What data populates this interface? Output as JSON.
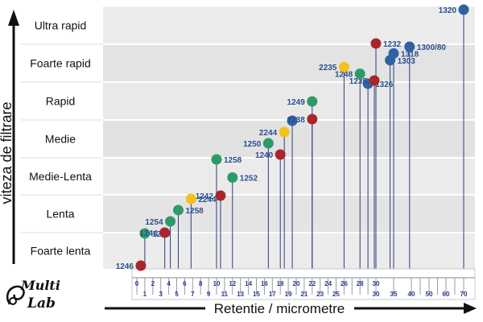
{
  "logo": {
    "line1": "Multi",
    "line2": "Lab"
  },
  "chart_data": {
    "type": "scatter",
    "xlabel": "Retentie / micrometre",
    "ylabel": "viteza de filtrare",
    "categories": [
      "Foarte lenta",
      "Lenta",
      "Medie-Lenta",
      "Medie",
      "Rapid",
      "Foarte rapid",
      "Ultra rapid"
    ],
    "x_ticks_top": [
      "0",
      "2",
      "4",
      "6",
      "8",
      "10",
      "12",
      "14",
      "16",
      "18",
      "20",
      "22",
      "24",
      "26",
      "28",
      "30"
    ],
    "x_ticks_bottom": [
      "1",
      "3",
      "5",
      "7",
      "9",
      "11",
      "13",
      "15",
      "17",
      "19",
      "21",
      "23",
      "25",
      "30",
      "35",
      "40",
      "50",
      "60",
      "70"
    ],
    "legend": "none",
    "grid": false,
    "points": [
      {
        "label": "1246",
        "x": 0.5,
        "category": "Foarte lenta",
        "color": "#a8262b"
      },
      {
        "label": "1256",
        "x": 1,
        "category": "Foarte lenta",
        "color": "#2e9a6a"
      },
      {
        "label": "1244",
        "x": 3.5,
        "category": "Lenta",
        "color": "#a8262b"
      },
      {
        "label": "1254",
        "x": 4.2,
        "category": "Lenta",
        "color": "#2e9a6a"
      },
      {
        "label": "1258",
        "x": 5.2,
        "category": "Lenta",
        "color": "#2e9a6a"
      },
      {
        "label": "2244",
        "x": 6.8,
        "category": "Lenta",
        "color": "#f2c21a"
      },
      {
        "label": "1242",
        "x": 10.5,
        "category": "Medie-Lenta",
        "color": "#a8262b"
      },
      {
        "label": "1252",
        "x": 12,
        "category": "Medie-Lenta",
        "color": "#2e9a6a"
      },
      {
        "label": "1258",
        "x": 10,
        "category": "Medie-Lenta",
        "color": "#2e9a6a"
      },
      {
        "label": "1240",
        "x": 18,
        "category": "Medie",
        "color": "#a8262b"
      },
      {
        "label": "1250",
        "x": 16.5,
        "category": "Medie",
        "color": "#2e9a6a"
      },
      {
        "label": "2244",
        "x": 18.5,
        "category": "Medie",
        "color": "#f2c21a"
      },
      {
        "label": "",
        "x": 19.5,
        "category": "Medie",
        "color": "#2f62a0"
      },
      {
        "label": "1238",
        "x": 22,
        "category": "Rapid",
        "color": "#a8262b"
      },
      {
        "label": "1249",
        "x": 22,
        "category": "Rapid",
        "color": "#2e9a6a"
      },
      {
        "label": "1326",
        "x": 29,
        "category": "Rapid",
        "color": "#2f62a0"
      },
      {
        "label": "1235",
        "x": 29.8,
        "category": "Foarte rapid",
        "color": "#a8262b"
      },
      {
        "label": "1248",
        "x": 28,
        "category": "Foarte rapid",
        "color": "#2e9a6a"
      },
      {
        "label": "2235",
        "x": 26,
        "category": "Foarte rapid",
        "color": "#f2c21a"
      },
      {
        "label": "1303",
        "x": 34,
        "category": "Foarte rapid",
        "color": "#2f62a0"
      },
      {
        "label": "1318",
        "x": 35,
        "category": "Foarte rapid",
        "color": "#2f62a0"
      },
      {
        "label": "1300/80",
        "x": 39.5,
        "category": "Foarte rapid",
        "color": "#2f62a0"
      },
      {
        "label": "1232",
        "x": 30,
        "category": "Ultra rapid",
        "color": "#a8262b"
      },
      {
        "label": "1320",
        "x": 70,
        "category": "Ultra rapid",
        "color": "#2f62a0"
      }
    ]
  }
}
